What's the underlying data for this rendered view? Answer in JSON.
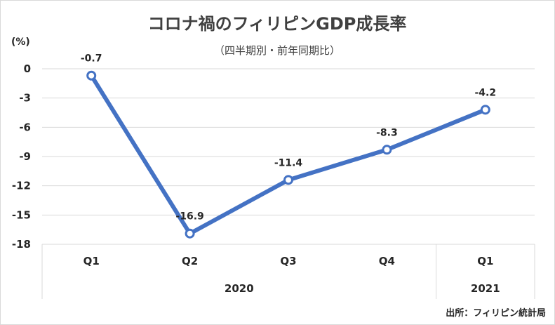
{
  "chart_data": {
    "type": "line",
    "title": "コロナ禍のフィリピンGDP成長率",
    "subtitle": "（四半期別・前年同期比）",
    "ylabel": "(%)",
    "xlabel": "",
    "categories": [
      "Q1",
      "Q2",
      "Q3",
      "Q4",
      "Q1"
    ],
    "groups": [
      {
        "label": "2020",
        "count": 4
      },
      {
        "label": "2021",
        "count": 1
      }
    ],
    "series": [
      {
        "values": [
          -0.7,
          -16.9,
          -11.4,
          -8.3,
          -4.2
        ],
        "color": "#4472c4"
      }
    ],
    "data_labels": [
      "-0.7",
      "-16.9",
      "-11.4",
      "-8.3",
      "-4.2"
    ],
    "yticks": [
      0,
      -3,
      -6,
      -9,
      -12,
      -15,
      -18
    ],
    "ytick_labels": [
      "0",
      "-3",
      "-6",
      "-9",
      "-12",
      "-15",
      "-18"
    ],
    "ylim": [
      -18,
      0
    ],
    "grid": true,
    "legend": "none",
    "source": "出所：フィリピン統計局"
  }
}
